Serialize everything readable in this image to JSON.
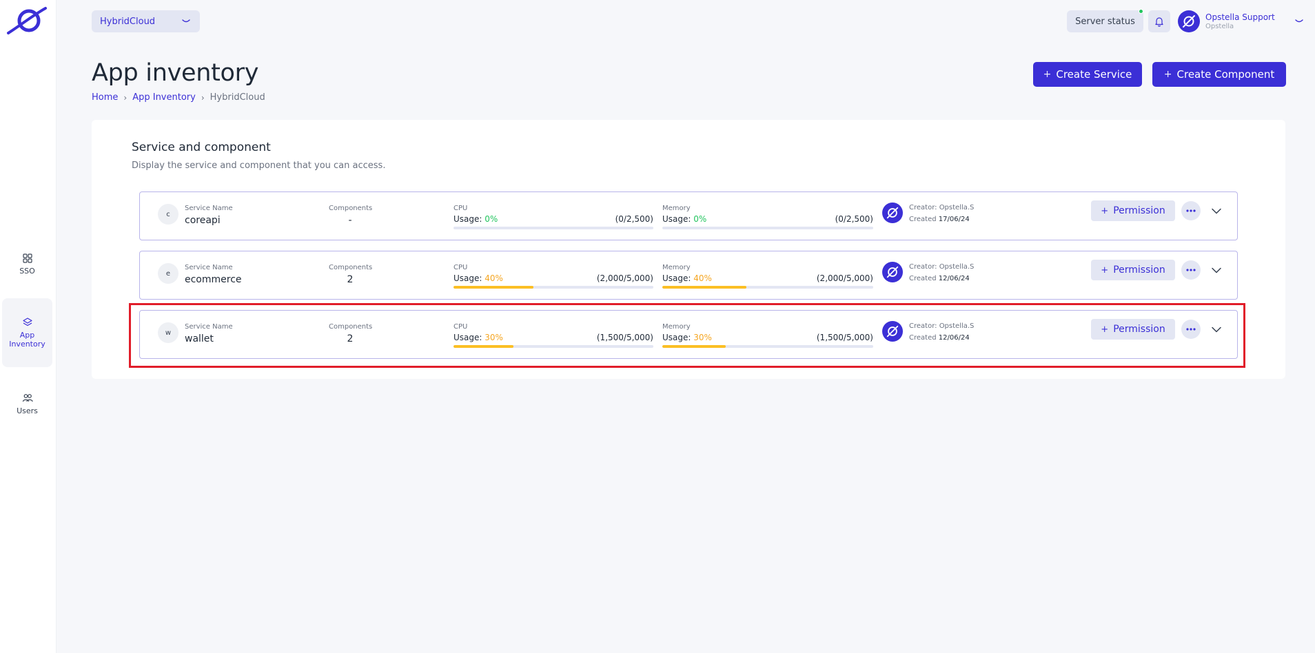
{
  "sidebar": {
    "items": [
      {
        "label": "SSO",
        "icon": "grid-icon"
      },
      {
        "label": "App Inventory",
        "icon": "layers-icon",
        "active": true
      },
      {
        "label": "Users",
        "icon": "users-icon"
      }
    ]
  },
  "topbar": {
    "cloud_selector": "HybridCloud",
    "server_status_label": "Server status",
    "user": {
      "name": "Opstella Support",
      "org": "Opstella"
    }
  },
  "header": {
    "title": "App inventory",
    "breadcrumb": {
      "home": "Home",
      "app_inventory": "App Inventory",
      "current": "HybridCloud"
    },
    "create_service_label": "Create Service",
    "create_component_label": "Create Component"
  },
  "section": {
    "title": "Service and component",
    "description": "Display the service and component that you can access."
  },
  "labels": {
    "service_name": "Service Name",
    "components": "Components",
    "cpu": "CPU",
    "memory": "Memory",
    "usage_prefix": "Usage:",
    "creator_prefix": "Creator:",
    "created_prefix": "Created",
    "permission": "Permission"
  },
  "services": [
    {
      "initial": "c",
      "name": "coreapi",
      "components": "-",
      "cpu": {
        "pct_text": "0%",
        "ratio": "(0/2,500)",
        "fraction": 0
      },
      "memory": {
        "pct_text": "0%",
        "ratio": "(0/2,500)",
        "fraction": 0
      },
      "creator": "Opstella.S",
      "created": "17/06/24"
    },
    {
      "initial": "e",
      "name": "ecommerce",
      "components": "2",
      "cpu": {
        "pct_text": "40%",
        "ratio": "(2,000/5,000)",
        "fraction": 0.4
      },
      "memory": {
        "pct_text": "40%",
        "ratio": "(2,000/5,000)",
        "fraction": 0.4
      },
      "creator": "Opstella.S",
      "created": "12/06/24"
    },
    {
      "initial": "w",
      "name": "wallet",
      "components": "2",
      "cpu": {
        "pct_text": "30%",
        "ratio": "(1,500/5,000)",
        "fraction": 0.3
      },
      "memory": {
        "pct_text": "30%",
        "ratio": "(1,500/5,000)",
        "fraction": 0.3
      },
      "creator": "Opstella.S",
      "created": "12/06/24"
    }
  ],
  "colors": {
    "accent": "#3b2fd6",
    "usage_bar": "#fbbf24",
    "usage_zero": "#22c55e",
    "usage_nonzero": "#f5a623",
    "highlight": "#e11d2a"
  }
}
